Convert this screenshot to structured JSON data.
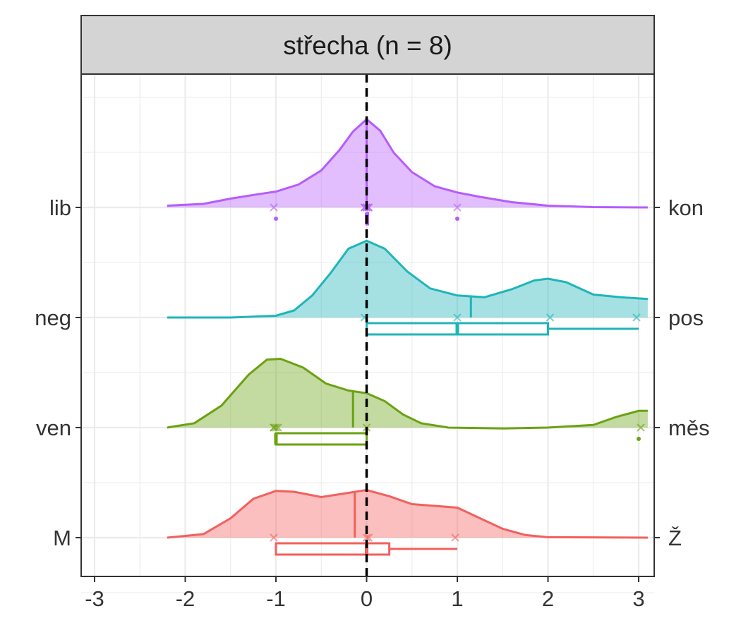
{
  "chart_data": {
    "type": "ridgeline-density-boxplot",
    "title": "",
    "facet_title": "střecha (n = 8)",
    "xlabel": "",
    "ylabel": "",
    "xlim": [
      -3.1,
      3.1
    ],
    "x_ticks": [
      "-3",
      "-2",
      "-1",
      "0",
      "1",
      "2",
      "3"
    ],
    "x_tick_values": [
      -3,
      -2,
      -1,
      0,
      1,
      2,
      3
    ],
    "reference_line": {
      "x": 0,
      "style": "dashed",
      "color": "#000000"
    },
    "grid": true,
    "legend": "none",
    "rows": [
      {
        "left_label": "lib",
        "right_label": "kon",
        "color": "#B65CFC",
        "density": [
          [
            -2.2,
            0.02
          ],
          [
            -1.8,
            0.04
          ],
          [
            -1.5,
            0.1
          ],
          [
            -1.2,
            0.15
          ],
          [
            -1.0,
            0.18
          ],
          [
            -0.75,
            0.26
          ],
          [
            -0.5,
            0.42
          ],
          [
            -0.3,
            0.65
          ],
          [
            -0.15,
            0.86
          ],
          [
            0,
            1.0
          ],
          [
            0.15,
            0.87
          ],
          [
            0.3,
            0.62
          ],
          [
            0.5,
            0.4
          ],
          [
            0.75,
            0.24
          ],
          [
            1.0,
            0.17
          ],
          [
            1.25,
            0.12
          ],
          [
            1.6,
            0.06
          ],
          [
            2.0,
            0.02
          ],
          [
            2.5,
            0.004
          ],
          [
            3.1,
            0.0
          ]
        ],
        "observations": [
          -1,
          0,
          0,
          0,
          0,
          0,
          0,
          1
        ],
        "median": 0,
        "box": {
          "q1": 0,
          "median": 0,
          "q3": 0,
          "whisker_low": 0,
          "whisker_high": 0
        },
        "outliers": [
          -1,
          1
        ]
      },
      {
        "left_label": "neg",
        "right_label": "pos",
        "color": "#1FB5B8",
        "density": [
          [
            -2.2,
            0.0
          ],
          [
            -1.5,
            0.0
          ],
          [
            -1.0,
            0.02
          ],
          [
            -0.8,
            0.08
          ],
          [
            -0.6,
            0.25
          ],
          [
            -0.4,
            0.5
          ],
          [
            -0.2,
            0.78
          ],
          [
            0,
            0.87
          ],
          [
            0.2,
            0.78
          ],
          [
            0.45,
            0.52
          ],
          [
            0.7,
            0.33
          ],
          [
            1.0,
            0.25
          ],
          [
            1.3,
            0.23
          ],
          [
            1.6,
            0.32
          ],
          [
            1.85,
            0.42
          ],
          [
            2.0,
            0.44
          ],
          [
            2.2,
            0.4
          ],
          [
            2.5,
            0.26
          ],
          [
            2.8,
            0.23
          ],
          [
            3.1,
            0.21
          ]
        ],
        "observations": [
          0,
          1,
          2,
          3
        ],
        "median": 1.15,
        "box": {
          "q1": 0,
          "median": 1,
          "q3": 2,
          "whisker_low": 0,
          "whisker_high": 3
        },
        "outliers": []
      },
      {
        "left_label": "ven",
        "right_label": "měs",
        "color": "#6AA211",
        "density": [
          [
            -2.2,
            0.0
          ],
          [
            -1.9,
            0.05
          ],
          [
            -1.6,
            0.25
          ],
          [
            -1.3,
            0.6
          ],
          [
            -1.1,
            0.77
          ],
          [
            -0.95,
            0.78
          ],
          [
            -0.7,
            0.68
          ],
          [
            -0.45,
            0.5
          ],
          [
            -0.2,
            0.42
          ],
          [
            0,
            0.39
          ],
          [
            0.2,
            0.3
          ],
          [
            0.4,
            0.15
          ],
          [
            0.6,
            0.05
          ],
          [
            0.9,
            0.0
          ],
          [
            1.5,
            -0.01
          ],
          [
            2.0,
            0.0
          ],
          [
            2.5,
            0.03
          ],
          [
            2.75,
            0.12
          ],
          [
            3.0,
            0.19
          ],
          [
            3.1,
            0.19
          ]
        ],
        "observations": [
          -1,
          -1,
          -1,
          -1,
          0,
          3
        ],
        "median": -0.15,
        "box": {
          "q1": -1,
          "median": -1,
          "q3": 0,
          "whisker_low": -1,
          "whisker_high": 0
        },
        "outliers": [
          3
        ]
      },
      {
        "left_label": "M",
        "right_label": "Ž",
        "color": "#F2605D",
        "density": [
          [
            -2.2,
            0.0
          ],
          [
            -1.8,
            0.04
          ],
          [
            -1.5,
            0.22
          ],
          [
            -1.25,
            0.44
          ],
          [
            -1.0,
            0.53
          ],
          [
            -0.8,
            0.52
          ],
          [
            -0.5,
            0.46
          ],
          [
            -0.25,
            0.5
          ],
          [
            0,
            0.54
          ],
          [
            0.25,
            0.47
          ],
          [
            0.5,
            0.38
          ],
          [
            0.75,
            0.36
          ],
          [
            1.0,
            0.34
          ],
          [
            1.25,
            0.22
          ],
          [
            1.5,
            0.1
          ],
          [
            1.75,
            0.03
          ],
          [
            2.0,
            0.005
          ],
          [
            3.1,
            0.0
          ]
        ],
        "observations": [
          -1,
          0,
          0,
          1
        ],
        "median": -0.13,
        "box": {
          "q1": -1,
          "median": 0,
          "q3": 0.25,
          "whisker_low": -1,
          "whisker_high": 1
        },
        "outliers": []
      }
    ]
  }
}
